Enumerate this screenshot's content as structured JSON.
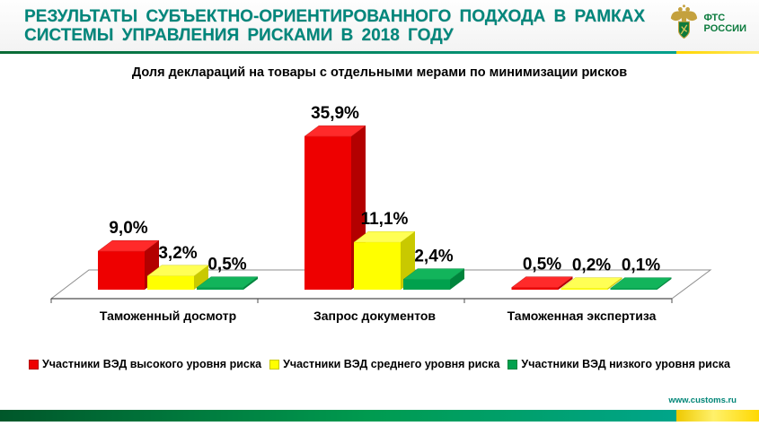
{
  "header": {
    "title_line1": "РЕЗУЛЬТАТЫ СУБЪЕКТНО-ОРИЕНТИРОВАННОГО ПОДХОДА В РАМКАХ",
    "title_line2": "СИСТЕМЫ УПРАВЛЕНИЯ РИСКАМИ В 2018 ГОДУ",
    "logo_text_line1": "ФТС",
    "logo_text_line2": "РОССИИ"
  },
  "footer": {
    "website": "www.customs.ru"
  },
  "colors": {
    "title_teal": "#00867B",
    "logo_green": "#0a7a3c",
    "rule_green_start": "#0a6b35",
    "rule_green_end": "#00a08c",
    "rule_yellow_start": "#ffd500",
    "rule_yellow_end": "#ffe95e",
    "footer_green_1": "#00572a",
    "footer_green_2": "#009b50",
    "footer_green_3": "#00a58a",
    "footer_yellow_1": "#eec900",
    "footer_yellow_2": "#fff16b",
    "footer_yellow_3": "#ffd800",
    "site_link": "#008577"
  },
  "chart_data": {
    "type": "bar",
    "style": "3d-clustered",
    "title": "Доля деклараций на товары с отдельными мерами по минимизации рисков",
    "categories": [
      "Таможенный досмотр",
      "Запрос документов",
      "Таможенная экспертиза"
    ],
    "series": [
      {
        "name": "Участники ВЭД высокого уровня риска",
        "values": [
          9.0,
          35.9,
          0.5
        ],
        "labels": [
          "9,0%",
          "35,9%",
          "0,5%"
        ],
        "color": "#ee0000",
        "color_light": "#ff2a2a",
        "color_dark": "#b30000"
      },
      {
        "name": "Участники ВЭД среднего уровня риска",
        "values": [
          3.2,
          11.1,
          0.2
        ],
        "labels": [
          "3,2%",
          "11,1%",
          "0,2%"
        ],
        "color": "#ffff00",
        "color_light": "#ffff55",
        "color_dark": "#c9c900"
      },
      {
        "name": "Участники ВЭД низкого уровня риска",
        "values": [
          0.5,
          2.4,
          0.1
        ],
        "labels": [
          "0,5%",
          "2,4%",
          "0,1%"
        ],
        "color": "#00a14d",
        "color_light": "#12b45b",
        "color_dark": "#00843c"
      }
    ],
    "value_unit": "%",
    "decimal_separator": ",",
    "legend_position": "bottom",
    "axis": "category-only, no value axis shown",
    "ylim": [
      0,
      40
    ]
  }
}
